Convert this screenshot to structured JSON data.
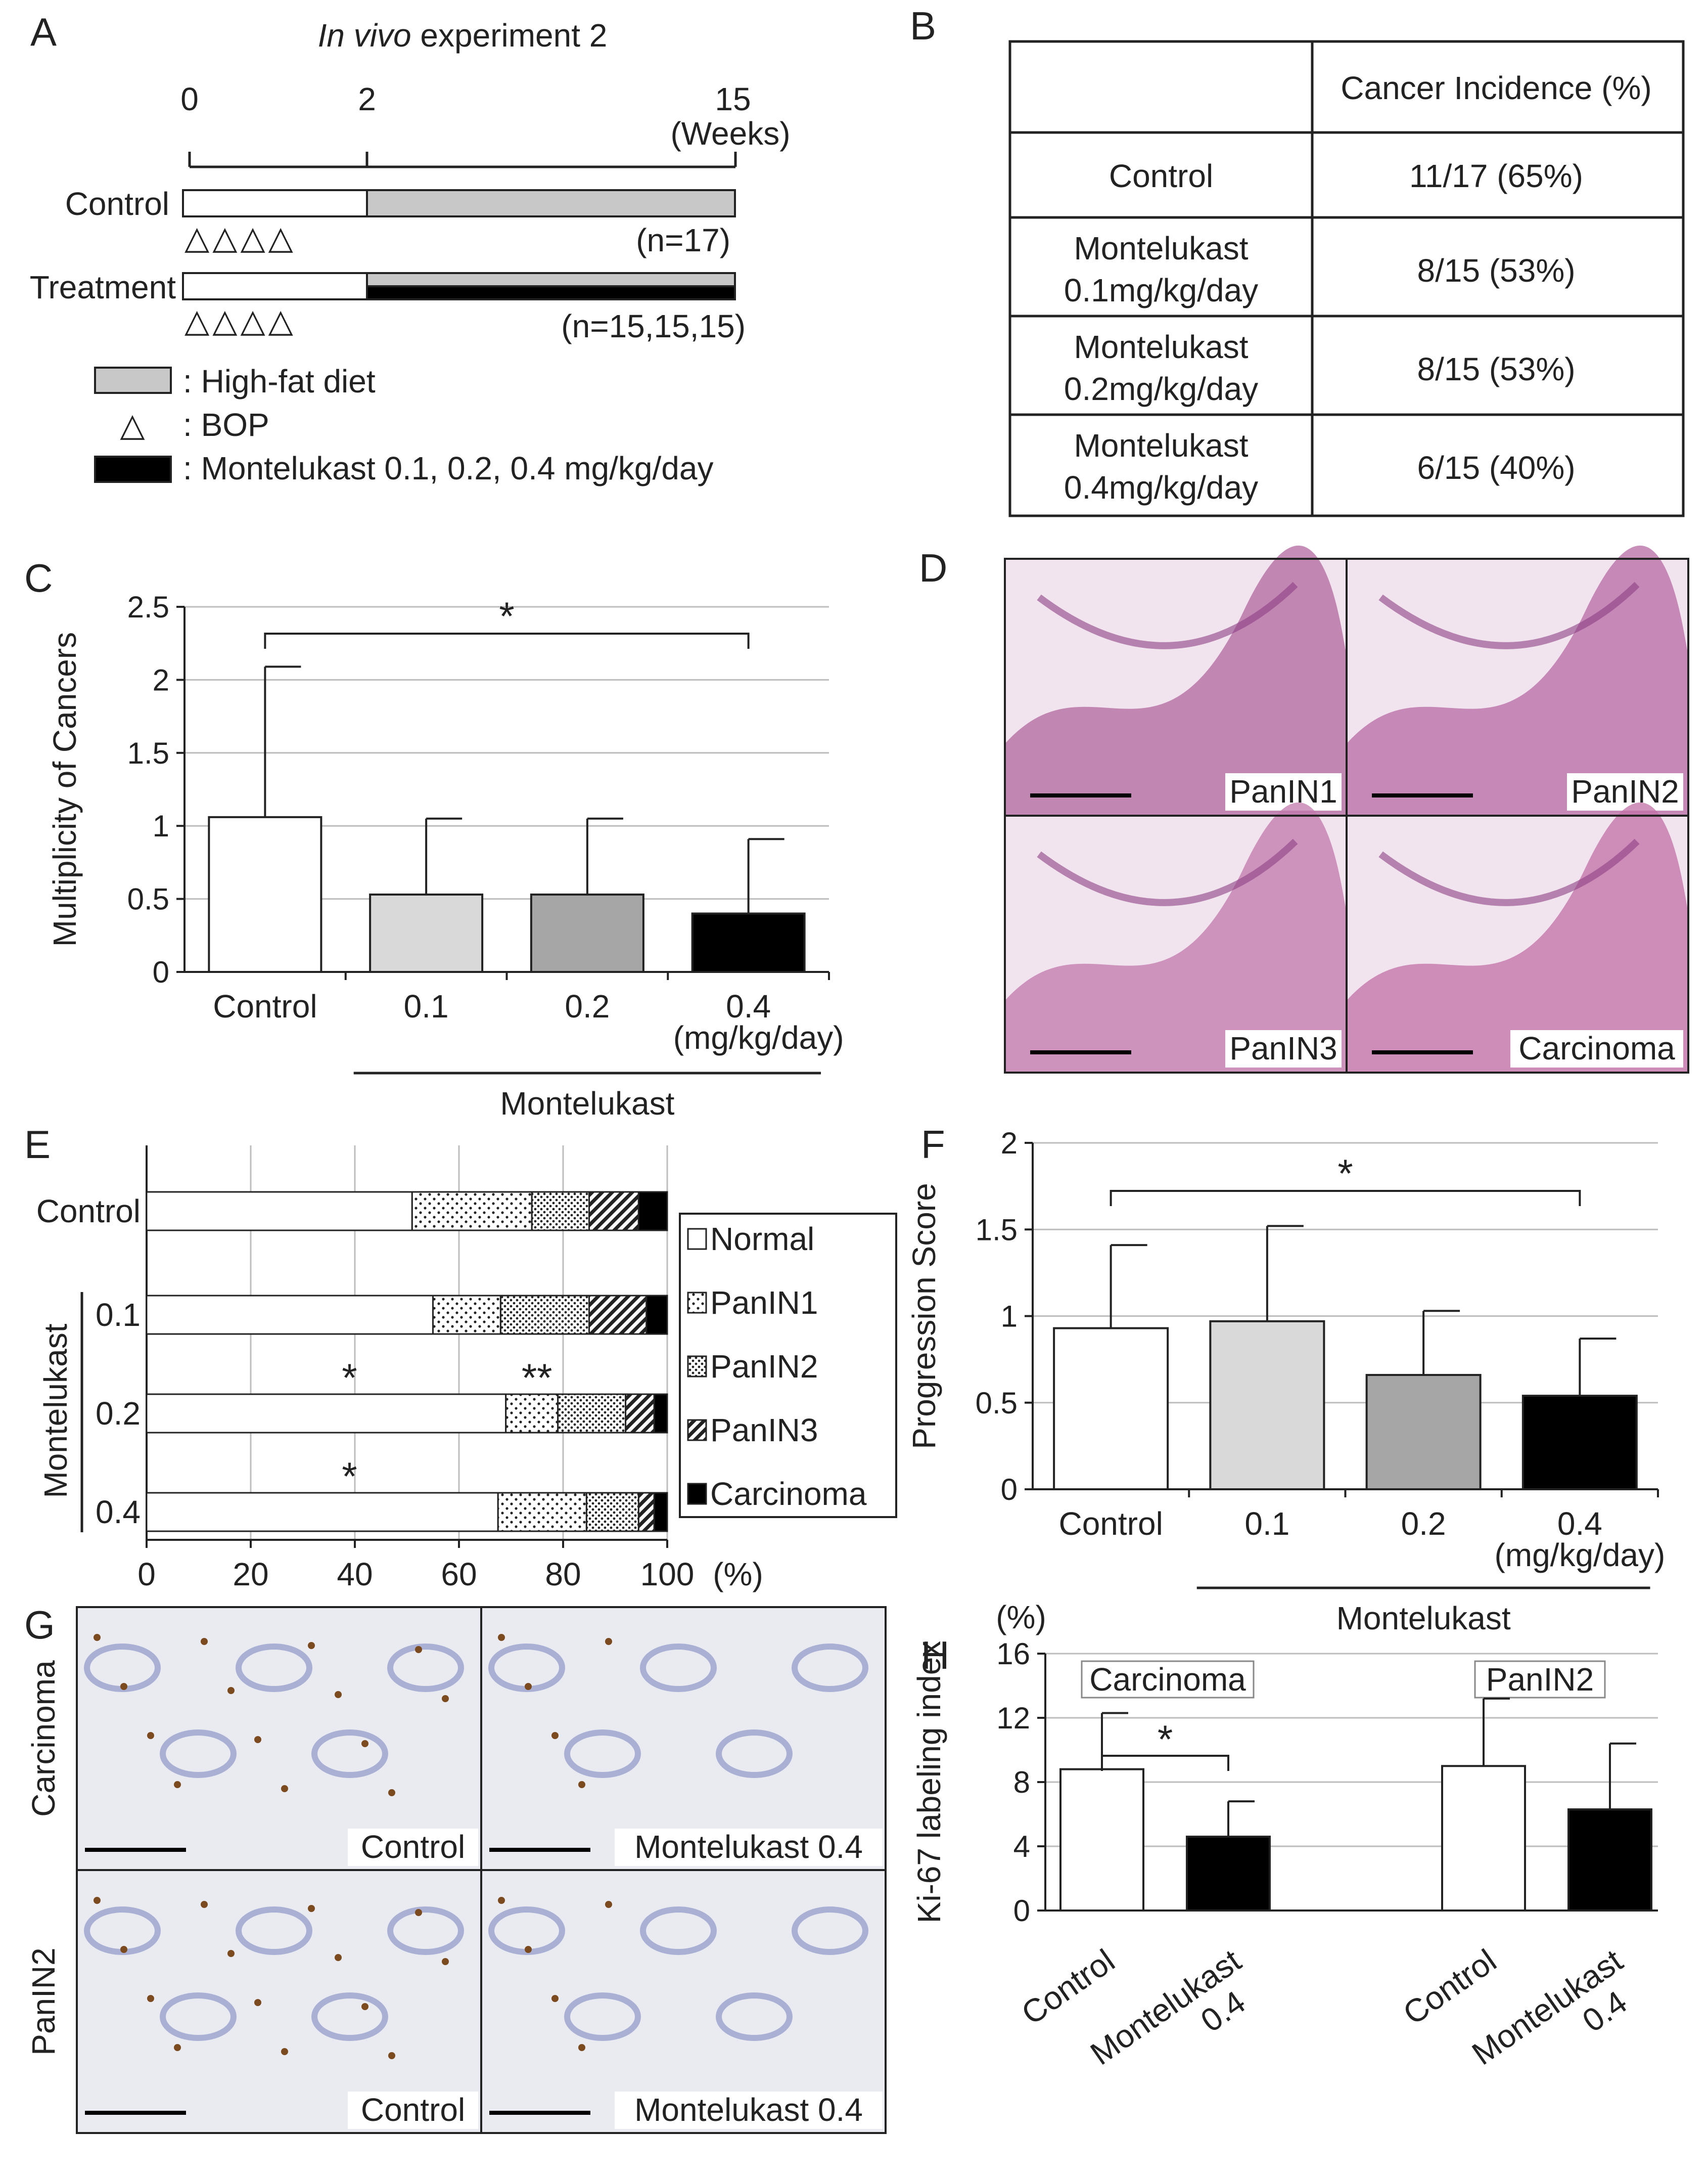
{
  "panel_letters": {
    "a": "A",
    "b": "B",
    "c": "C",
    "d": "D",
    "e": "E",
    "f": "F",
    "g": "G",
    "h": "H"
  },
  "panel_a": {
    "title_italic": "In vivo",
    "title_rest": " experiment 2",
    "week_ticks": [
      "0",
      "2",
      "15"
    ],
    "weeks_label": "(Weeks)",
    "rows": [
      {
        "label": "Control",
        "n": "(n=17)"
      },
      {
        "label": "Treatment",
        "n": "(n=15,15,15)"
      }
    ],
    "bop_mark": "△△△△",
    "legend": [
      {
        "text": ": High-fat diet",
        "color": "#c8c8c8"
      },
      {
        "text": ": BOP",
        "symbol": "△"
      },
      {
        "text": ": Montelukast  0.1, 0.2, 0.4 mg/kg/day",
        "color": "#000000"
      }
    ]
  },
  "panel_b": {
    "header": [
      "",
      "Cancer Incidence (%)"
    ],
    "rows": [
      {
        "group": [
          "Control"
        ],
        "value": "11/17 (65%)"
      },
      {
        "group": [
          "Montelukast",
          "0.1mg/kg/day"
        ],
        "value": "8/15 (53%)"
      },
      {
        "group": [
          "Montelukast",
          "0.2mg/kg/day"
        ],
        "value": "8/15 (53%)"
      },
      {
        "group": [
          "Montelukast",
          "0.4mg/kg/day"
        ],
        "value": "6/15 (40%)"
      }
    ]
  },
  "panel_d": {
    "tiles": [
      {
        "label": "PanIN1",
        "tone": "#b1679f"
      },
      {
        "label": "PanIN2",
        "tone": "#b66aa4"
      },
      {
        "label": "PanIN3",
        "tone": "#c078ac"
      },
      {
        "label": "Carcinoma",
        "tone": "#c070a6"
      }
    ]
  },
  "panel_g": {
    "row_labels": [
      "Carcinoma",
      "PanIN2"
    ],
    "tiles": [
      {
        "label": "Control"
      },
      {
        "label": "Montelukast 0.4"
      },
      {
        "label": "Control"
      },
      {
        "label": "Montelukast 0.4"
      }
    ]
  },
  "chart_data": [
    {
      "id": "C",
      "type": "bar",
      "ylabel": "Multiplicity of Cancers",
      "ylim": [
        0,
        2.5
      ],
      "yticks": [
        "0",
        "0.5",
        "1",
        "1.5",
        "2",
        "2.5"
      ],
      "grid": true,
      "categories": [
        "Control",
        "0.1",
        "0.2",
        "0.4"
      ],
      "unit_label": "(mg/kg/day)",
      "group_label": "Montelukast",
      "values": [
        1.06,
        0.53,
        0.53,
        0.4
      ],
      "errors": [
        1.03,
        0.52,
        0.52,
        0.51
      ],
      "colors": [
        "#ffffff",
        "#d9d9d9",
        "#a6a6a6",
        "#000000"
      ],
      "significance": {
        "from": 0,
        "to": 3,
        "label": "*"
      }
    },
    {
      "id": "E",
      "type": "bar",
      "orientation": "horizontal-stacked",
      "xlim": [
        0,
        100
      ],
      "xticks": [
        "0",
        "20",
        "40",
        "60",
        "80",
        "100"
      ],
      "unit_label": "(%)",
      "grid": true,
      "categories": [
        "Control",
        "0.1",
        "0.2",
        "0.4"
      ],
      "group_label": "Montelukast",
      "series": [
        {
          "name": "Normal",
          "values": [
            51,
            55,
            69,
            67.5
          ]
        },
        {
          "name": "PanIN1",
          "values": [
            23,
            13,
            10,
            17
          ]
        },
        {
          "name": "PanIN2",
          "values": [
            11,
            17,
            13,
            10
          ]
        },
        {
          "name": "PanIN3",
          "values": [
            9.5,
            11,
            5.5,
            3
          ]
        },
        {
          "name": "Carcinoma",
          "values": [
            5.5,
            4,
            2.5,
            2.5
          ]
        }
      ],
      "annotations": [
        {
          "category": "0.2",
          "value": 38,
          "label": "*"
        },
        {
          "category": "0.2",
          "value": 74,
          "label": "**"
        },
        {
          "category": "0.4",
          "value": 38,
          "label": "*"
        }
      ],
      "legend_position": "right"
    },
    {
      "id": "F",
      "type": "bar",
      "ylabel": "Progression Score",
      "ylim": [
        0,
        2
      ],
      "yticks": [
        "0",
        "0.5",
        "1",
        "1.5",
        "2"
      ],
      "grid": true,
      "categories": [
        "Control",
        "0.1",
        "0.2",
        "0.4"
      ],
      "unit_label": "(mg/kg/day)",
      "group_label": "Montelukast",
      "values": [
        0.93,
        0.97,
        0.66,
        0.54
      ],
      "errors": [
        0.48,
        0.55,
        0.37,
        0.33
      ],
      "colors": [
        "#ffffff",
        "#d9d9d9",
        "#a6a6a6",
        "#000000"
      ],
      "significance": {
        "from": 0,
        "to": 3,
        "label": "*"
      }
    },
    {
      "id": "H",
      "type": "bar",
      "ylabel": "Ki-67 labeling index",
      "unit_label": "(%)",
      "ylim": [
        0,
        16
      ],
      "yticks": [
        "0",
        "4",
        "8",
        "12",
        "16"
      ],
      "grid": true,
      "groups": [
        {
          "name": "Carcinoma",
          "categories": [
            "Control",
            "Montelukast 0.4"
          ],
          "values": [
            8.8,
            4.6
          ],
          "errors": [
            3.5,
            2.2
          ]
        },
        {
          "name": "PanIN2",
          "categories": [
            "Control",
            "Montelukast 0.4"
          ],
          "values": [
            9.0,
            6.3
          ],
          "errors": [
            4.2,
            4.1
          ]
        }
      ],
      "colors": [
        "#ffffff",
        "#000000"
      ],
      "significance": {
        "group": 0,
        "label": "*"
      }
    }
  ]
}
